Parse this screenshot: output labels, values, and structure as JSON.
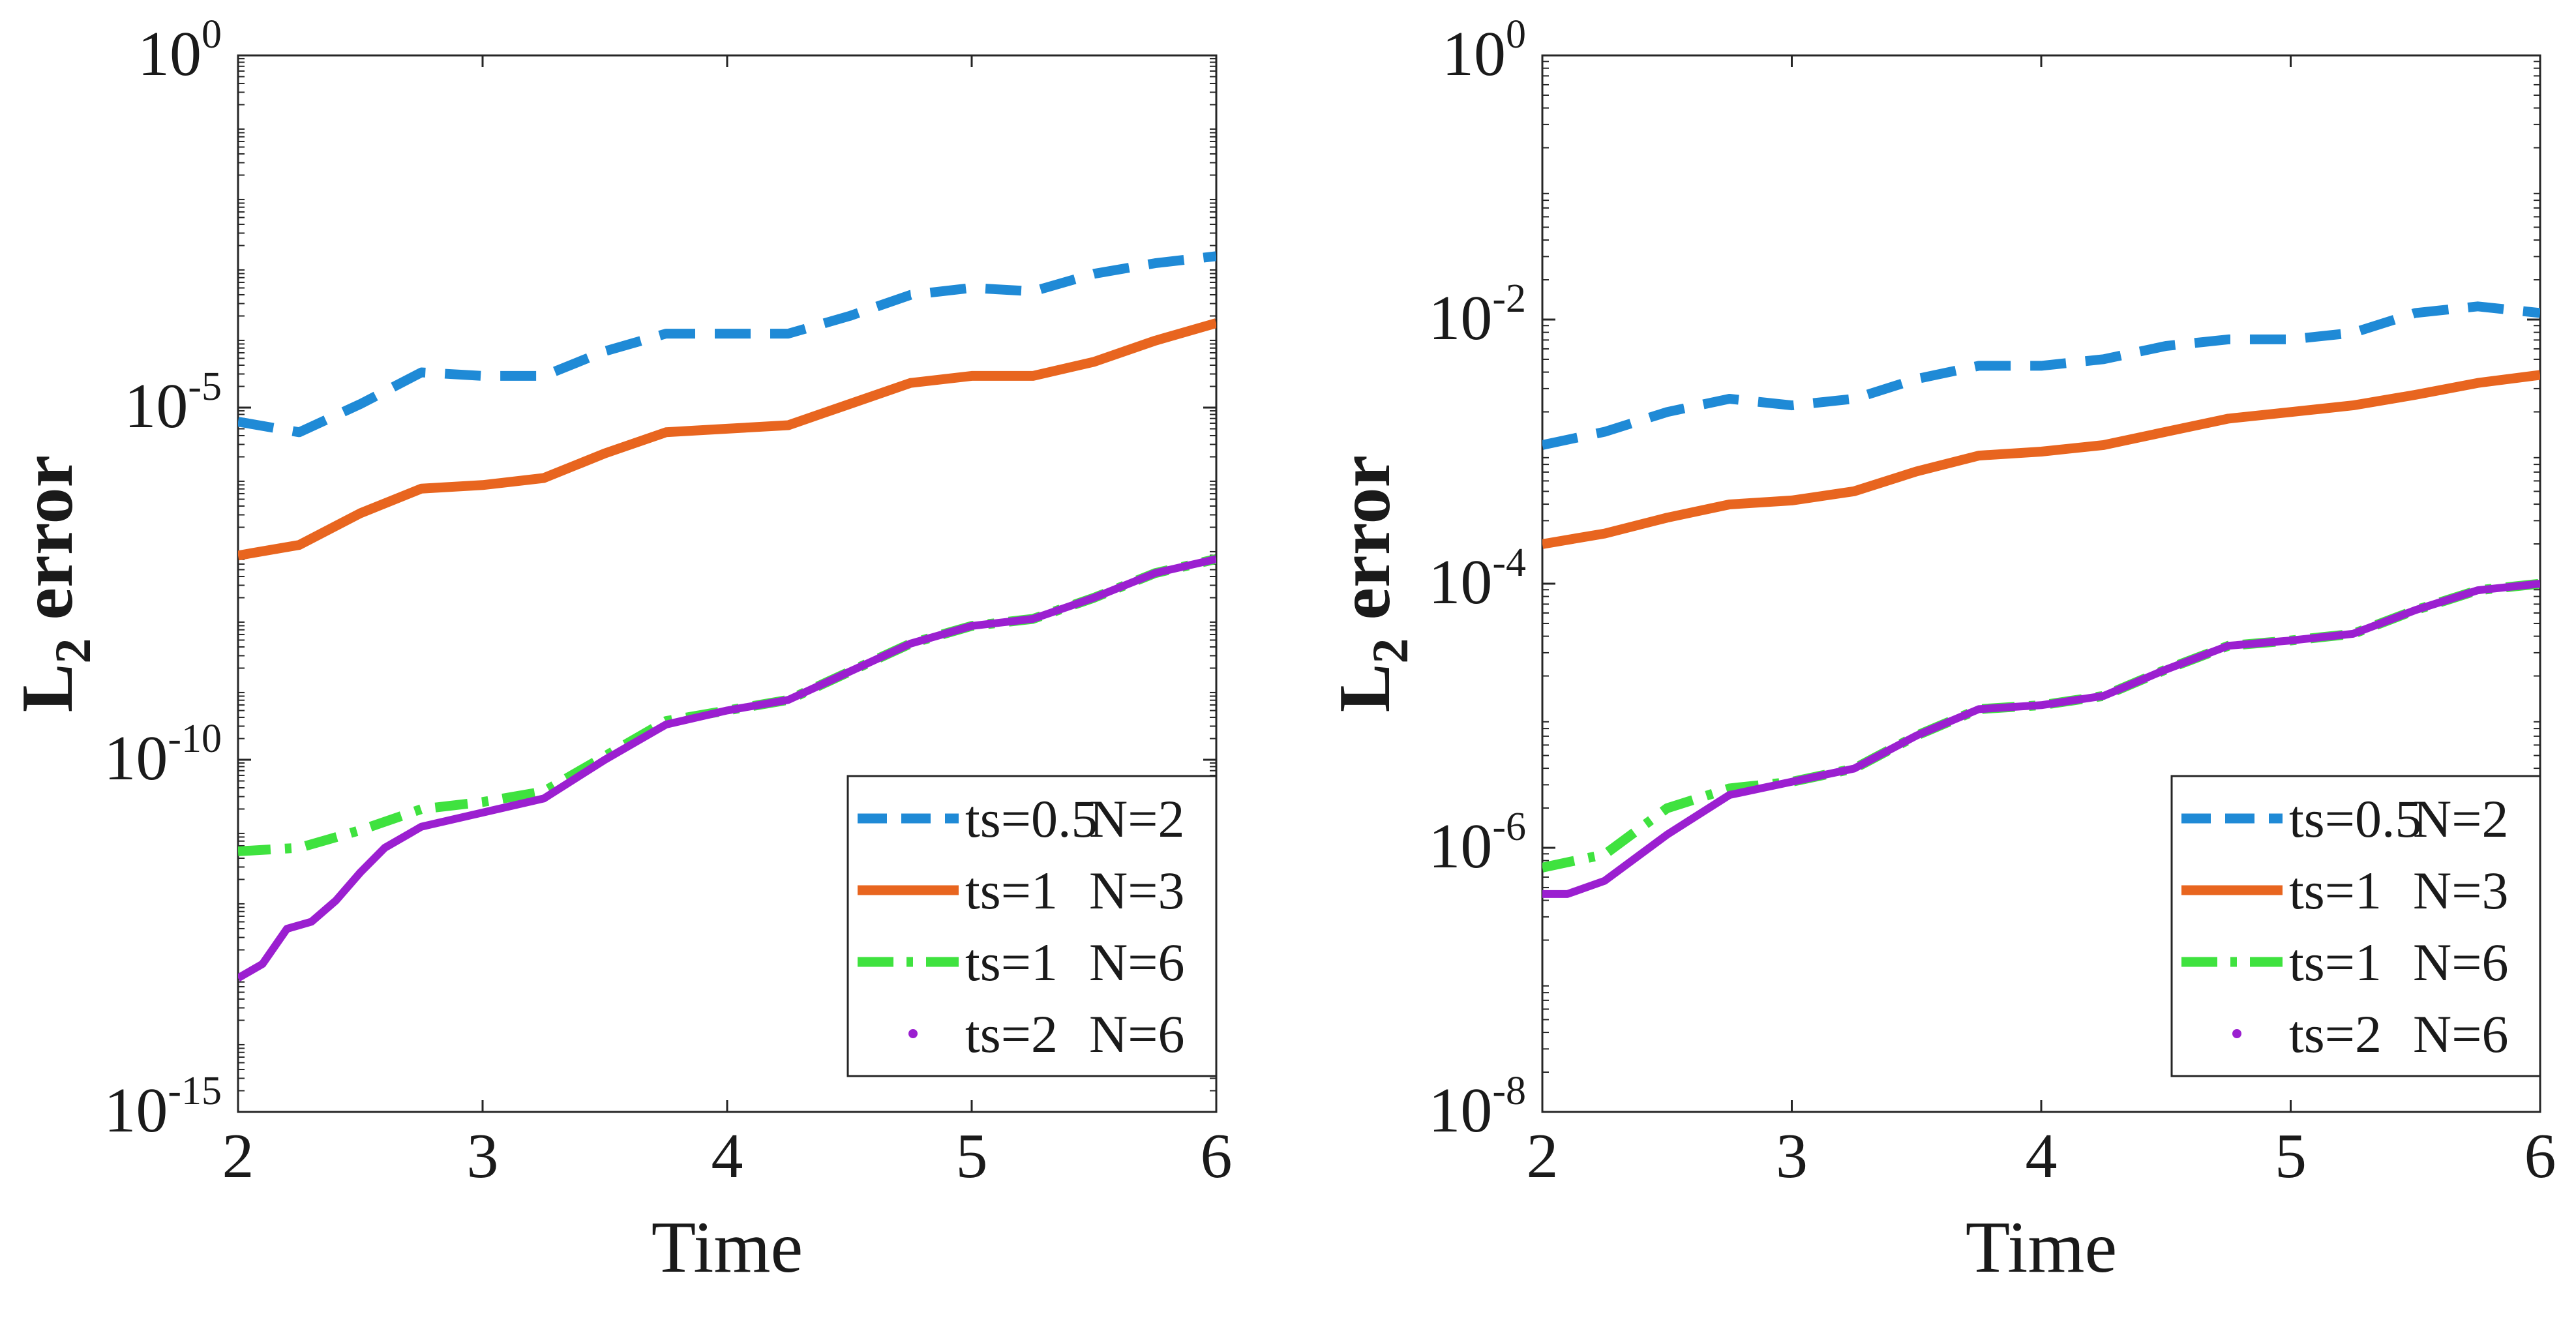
{
  "chart_data": [
    {
      "type": "line",
      "xlabel": "Time",
      "ylabel": "L",
      "ylabel_sub": "2",
      "ylabel_rest": " error",
      "yscale": "log",
      "xlim": [
        2,
        6
      ],
      "ylim_exp": [
        -15,
        0
      ],
      "xticks": [
        "2",
        "3",
        "4",
        "5",
        "6"
      ],
      "yticks": [
        {
          "base": "10",
          "exp": "0",
          "value": 0
        },
        {
          "base": "10",
          "exp": "-5",
          "value": -5
        },
        {
          "base": "10",
          "exp": "-10",
          "value": -10
        },
        {
          "base": "10",
          "exp": "-15",
          "value": -15
        }
      ],
      "minor_log_ticks": true,
      "grid": false,
      "legend_position": "bottom-right",
      "series": [
        {
          "name": "ts=0.5",
          "name2": "N=2",
          "style": "dashed",
          "color": "#1f8ad6",
          "x": [
            2.0,
            2.25,
            2.5,
            2.75,
            3.0,
            3.25,
            3.5,
            3.75,
            4.0,
            4.25,
            4.5,
            4.75,
            5.0,
            5.25,
            5.5,
            5.75,
            6.0
          ],
          "y": [
            -5.2,
            -5.35,
            -4.95,
            -4.5,
            -4.55,
            -4.55,
            -4.2,
            -3.95,
            -3.95,
            -3.95,
            -3.7,
            -3.4,
            -3.3,
            -3.35,
            -3.1,
            -2.95,
            -2.85
          ]
        },
        {
          "name": "ts=1",
          "name2": "N=3",
          "style": "solid",
          "color": "#e8651f",
          "x": [
            2.0,
            2.25,
            2.5,
            2.75,
            3.0,
            3.25,
            3.5,
            3.75,
            4.0,
            4.25,
            4.5,
            4.75,
            5.0,
            5.25,
            5.5,
            5.75,
            6.0
          ],
          "y": [
            -7.1,
            -6.95,
            -6.5,
            -6.15,
            -6.1,
            -6.0,
            -5.65,
            -5.35,
            -5.3,
            -5.25,
            -4.95,
            -4.65,
            -4.55,
            -4.55,
            -4.35,
            -4.05,
            -3.8
          ]
        },
        {
          "name": "ts=1",
          "name2": "N=6",
          "style": "dashdot",
          "color": "#3fe23f",
          "x": [
            2.0,
            2.25,
            2.5,
            2.75,
            3.0,
            3.25,
            3.5,
            3.75,
            4.0,
            4.25,
            4.5,
            4.75,
            5.0,
            5.25,
            5.5,
            5.75,
            6.0
          ],
          "y": [
            -11.3,
            -11.25,
            -11.0,
            -10.7,
            -10.6,
            -10.45,
            -9.95,
            -9.45,
            -9.3,
            -9.15,
            -8.75,
            -8.35,
            -8.1,
            -8.0,
            -7.7,
            -7.35,
            -7.15
          ]
        },
        {
          "name": "ts=2",
          "name2": "N=6",
          "style": "solid-thick",
          "color": "#9b1fd0",
          "x": [
            2.0,
            2.1,
            2.2,
            2.3,
            2.4,
            2.5,
            2.6,
            2.75,
            3.0,
            3.25,
            3.5,
            3.75,
            4.0,
            4.25,
            4.5,
            4.75,
            5.0,
            5.25,
            5.5,
            5.75,
            6.0
          ],
          "y": [
            -13.1,
            -12.9,
            -12.4,
            -12.3,
            -12.0,
            -11.6,
            -11.25,
            -10.95,
            -10.75,
            -10.55,
            -10.0,
            -9.5,
            -9.3,
            -9.15,
            -8.75,
            -8.35,
            -8.1,
            -8.0,
            -7.7,
            -7.35,
            -7.15
          ]
        }
      ]
    },
    {
      "type": "line",
      "xlabel": "Time",
      "ylabel": "L",
      "ylabel_sub": "2",
      "ylabel_rest": " error",
      "yscale": "log",
      "xlim": [
        2,
        6
      ],
      "ylim_exp": [
        -8,
        0
      ],
      "xticks": [
        "2",
        "3",
        "4",
        "5",
        "6"
      ],
      "yticks": [
        {
          "base": "10",
          "exp": "0",
          "value": 0
        },
        {
          "base": "10",
          "exp": "-2",
          "value": -2
        },
        {
          "base": "10",
          "exp": "-4",
          "value": -4
        },
        {
          "base": "10",
          "exp": "-6",
          "value": -6
        },
        {
          "base": "10",
          "exp": "-8",
          "value": -8
        }
      ],
      "minor_log_ticks": true,
      "grid": false,
      "legend_position": "bottom-right",
      "series": [
        {
          "name": "ts=0.5",
          "name2": "N=2",
          "style": "dashed",
          "color": "#1f8ad6",
          "x": [
            2.0,
            2.25,
            2.5,
            2.75,
            3.0,
            3.25,
            3.5,
            3.75,
            4.0,
            4.25,
            4.5,
            4.75,
            5.0,
            5.25,
            5.5,
            5.75,
            6.0
          ],
          "y": [
            -2.95,
            -2.85,
            -2.7,
            -2.6,
            -2.65,
            -2.6,
            -2.45,
            -2.35,
            -2.35,
            -2.3,
            -2.2,
            -2.15,
            -2.15,
            -2.1,
            -1.95,
            -1.9,
            -1.95
          ]
        },
        {
          "name": "ts=1",
          "name2": "N=3",
          "style": "solid",
          "color": "#e8651f",
          "x": [
            2.0,
            2.25,
            2.5,
            2.75,
            3.0,
            3.25,
            3.5,
            3.75,
            4.0,
            4.25,
            4.5,
            4.75,
            5.0,
            5.25,
            5.5,
            5.75,
            6.0
          ],
          "y": [
            -3.7,
            -3.62,
            -3.5,
            -3.4,
            -3.37,
            -3.3,
            -3.15,
            -3.03,
            -3.0,
            -2.95,
            -2.85,
            -2.75,
            -2.7,
            -2.65,
            -2.57,
            -2.48,
            -2.42
          ]
        },
        {
          "name": "ts=1",
          "name2": "N=6",
          "style": "dashdot",
          "color": "#3fe23f",
          "x": [
            2.0,
            2.25,
            2.5,
            2.75,
            3.0,
            3.25,
            3.5,
            3.75,
            4.0,
            4.25,
            4.5,
            4.75,
            5.0,
            5.25,
            5.5,
            5.75,
            6.0
          ],
          "y": [
            -6.15,
            -6.05,
            -5.7,
            -5.55,
            -5.5,
            -5.4,
            -5.15,
            -4.95,
            -4.92,
            -4.85,
            -4.65,
            -4.47,
            -4.43,
            -4.38,
            -4.2,
            -4.05,
            -4.0
          ]
        },
        {
          "name": "ts=2",
          "name2": "N=6",
          "style": "solid-thick",
          "color": "#9b1fd0",
          "x": [
            2.0,
            2.1,
            2.25,
            2.5,
            2.75,
            3.0,
            3.25,
            3.5,
            3.75,
            4.0,
            4.25,
            4.5,
            4.75,
            5.0,
            5.25,
            5.5,
            5.75,
            6.0
          ],
          "y": [
            -6.35,
            -6.35,
            -6.25,
            -5.9,
            -5.6,
            -5.5,
            -5.4,
            -5.15,
            -4.95,
            -4.92,
            -4.85,
            -4.65,
            -4.47,
            -4.43,
            -4.38,
            -4.2,
            -4.05,
            -4.0
          ]
        }
      ]
    }
  ]
}
